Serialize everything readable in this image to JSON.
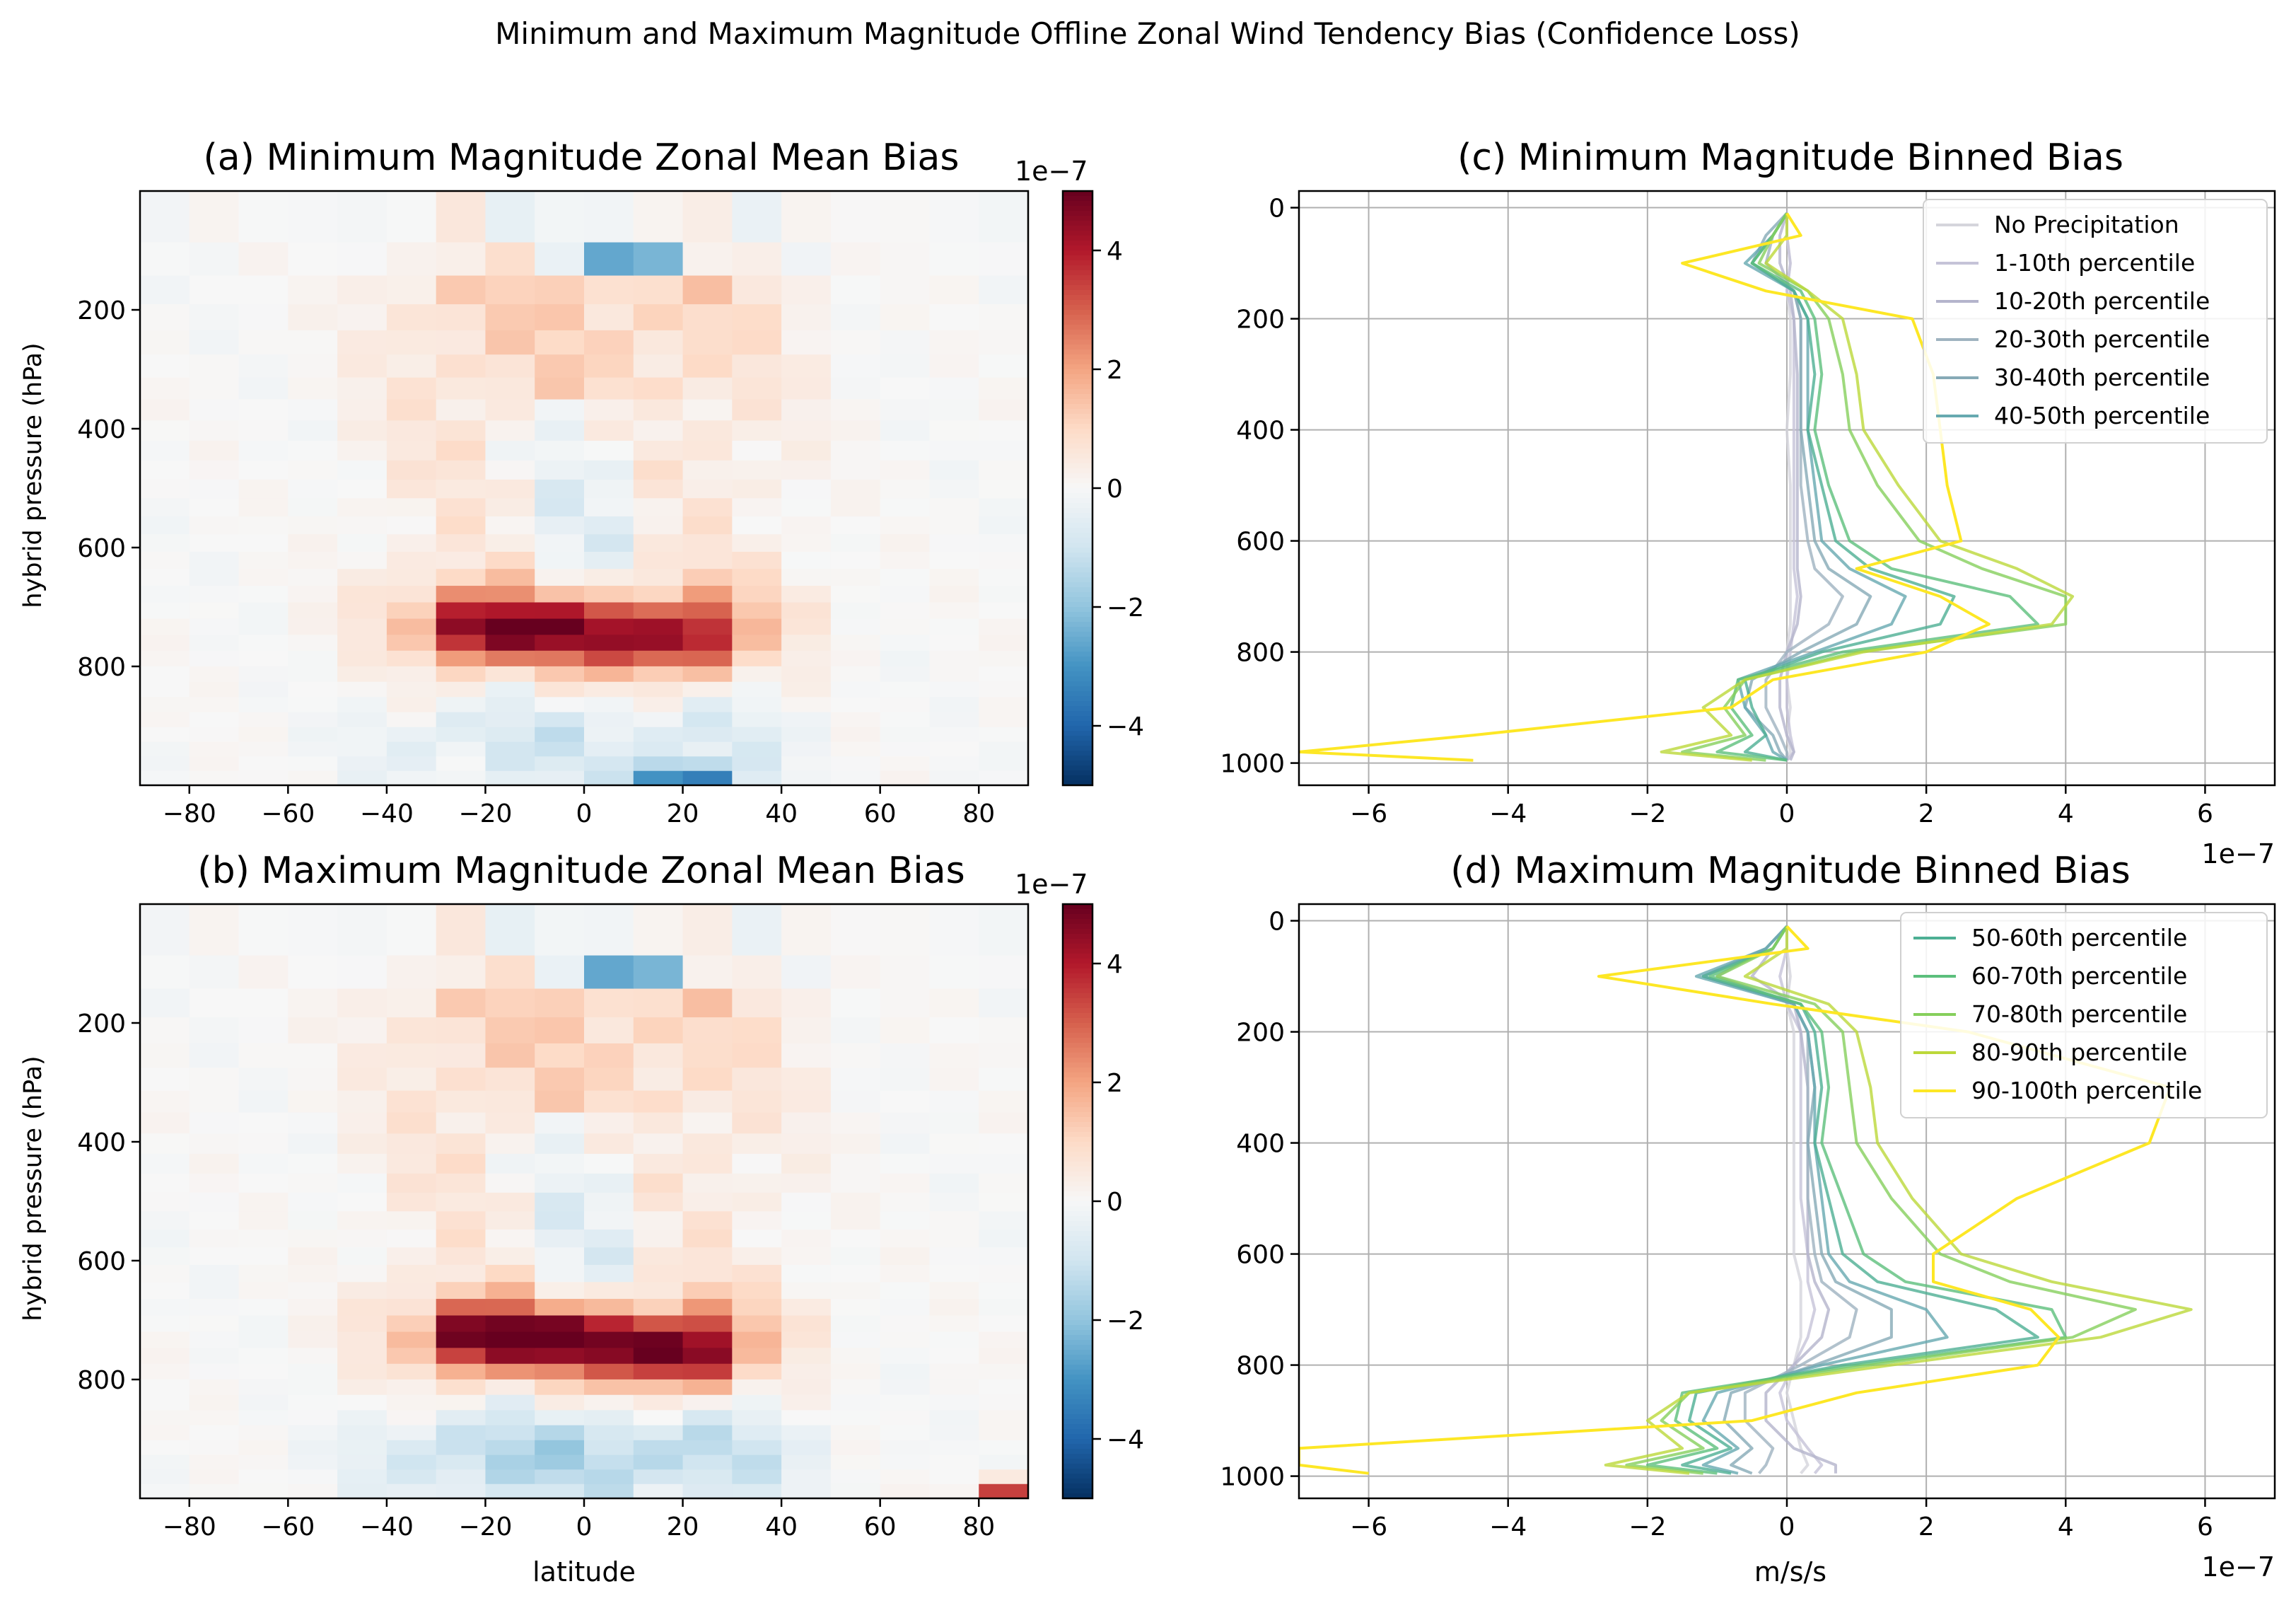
{
  "suptitle": "Minimum and Maximum Magnitude Offline Zonal Wind Tendency Bias (Confidence Loss)",
  "chart_data": [
    {
      "id": "a",
      "type": "heatmap",
      "title": "(a) Minimum Magnitude Zonal Mean Bias",
      "xlabel": "",
      "ylabel": "hybrid pressure (hPa)",
      "xlim": [
        -90,
        90
      ],
      "ylim": [
        1000,
        0
      ],
      "x_ticks": [
        -80,
        -60,
        -40,
        -20,
        0,
        20,
        40,
        60,
        80
      ],
      "x_tick_labels": [
        "−80",
        "−60",
        "−40",
        "−20",
        "0",
        "20",
        "40",
        "60",
        "80"
      ],
      "y_ticks": [
        200,
        400,
        600,
        800
      ],
      "y_tick_labels": [
        "200",
        "400",
        "600",
        "800"
      ],
      "latitude_band_width": 10,
      "colormap": "RdBu_r",
      "colorbar": {
        "range": [
          -5e-07,
          5e-07
        ],
        "ticks": [
          4,
          2,
          0,
          -2,
          -4
        ],
        "tick_labels": [
          "4",
          "2",
          "0",
          "−2",
          "−4"
        ],
        "exponent_label": "1e−7"
      },
      "features": [
        {
          "lat": 10,
          "p": 100,
          "value": -5e-07
        },
        {
          "lat": -20,
          "p": 740,
          "value": 4.5e-07
        },
        {
          "lat": 0,
          "p": 750,
          "value": 3.6e-07
        },
        {
          "lat": 20,
          "p": 760,
          "value": 3.9e-07
        },
        {
          "lat": 20,
          "p": 985,
          "value": -4.5e-07
        }
      ]
    },
    {
      "id": "b",
      "type": "heatmap",
      "title": "(b) Maximum Magnitude Zonal Mean Bias",
      "xlabel": "latitude",
      "ylabel": "hybrid pressure (hPa)",
      "xlim": [
        -90,
        90
      ],
      "ylim": [
        1000,
        0
      ],
      "x_ticks": [
        -80,
        -60,
        -40,
        -20,
        0,
        20,
        40,
        60,
        80
      ],
      "x_tick_labels": [
        "−80",
        "−60",
        "−40",
        "−20",
        "0",
        "20",
        "40",
        "60",
        "80"
      ],
      "y_ticks": [
        200,
        400,
        600,
        800
      ],
      "y_tick_labels": [
        "200",
        "400",
        "600",
        "800"
      ],
      "latitude_band_width": 10,
      "colormap": "RdBu_r",
      "colorbar": {
        "range": [
          -5e-07,
          5e-07
        ],
        "ticks": [
          4,
          2,
          0,
          -2,
          -4
        ],
        "tick_labels": [
          "4",
          "2",
          "0",
          "−2",
          "−4"
        ],
        "exponent_label": "1e−7"
      },
      "features": [
        {
          "lat": 10,
          "p": 100,
          "value": -5e-07
        },
        {
          "lat": -20,
          "p": 730,
          "value": 5e-07
        },
        {
          "lat": 0,
          "p": 740,
          "value": 4.2e-07
        },
        {
          "lat": 20,
          "p": 760,
          "value": 5e-07
        },
        {
          "lat": 90,
          "p": 990,
          "value": 5e-07
        }
      ]
    },
    {
      "id": "c",
      "type": "line",
      "title": "(c) Minimum Magnitude Binned Bias",
      "xlabel": "",
      "ylabel": "",
      "xlim": [
        -7e-07,
        7e-07
      ],
      "ylim": [
        1040,
        -30
      ],
      "x_ticks": [
        -6,
        -4,
        -2,
        0,
        2,
        4,
        6
      ],
      "x_tick_labels": [
        "−6",
        "−4",
        "−2",
        "0",
        "2",
        "4",
        "6"
      ],
      "x_exponent_label": "1e−7",
      "y_ticks": [
        0,
        200,
        400,
        600,
        800,
        1000
      ],
      "y_tick_labels": [
        "0",
        "200",
        "400",
        "600",
        "800",
        "1000"
      ],
      "grid": true,
      "legend": "top-right",
      "legend_entries": [
        "No Precipitation",
        "1-10th percentile",
        "10-20th percentile",
        "20-30th percentile",
        "30-40th percentile",
        "40-50th percentile"
      ],
      "y": [
        10,
        50,
        100,
        150,
        200,
        300,
        400,
        500,
        600,
        650,
        700,
        750,
        800,
        850,
        900,
        950,
        980,
        995
      ],
      "series": [
        {
          "name": "No Precipitation",
          "color": "#d5d5dc",
          "values": [
            0.0,
            0.0,
            0.05,
            0.0,
            0.05,
            0.05,
            0.0,
            0.05,
            0.05,
            0.05,
            0.05,
            0.05,
            0.0,
            0.0,
            0.05,
            0.0,
            0.05,
            0.0
          ]
        },
        {
          "name": "1-10th percentile",
          "color": "#c5c3d8",
          "values": [
            0.0,
            0.0,
            0.05,
            0.0,
            0.1,
            0.1,
            0.1,
            0.1,
            0.1,
            0.1,
            0.15,
            0.1,
            0.05,
            0.0,
            0.0,
            0.05,
            0.1,
            0.0
          ]
        },
        {
          "name": "10-20th percentile",
          "color": "#b4b4cc",
          "values": [
            0.0,
            -0.1,
            -0.1,
            0.05,
            0.1,
            0.15,
            0.15,
            0.15,
            0.15,
            0.15,
            0.2,
            0.15,
            0.0,
            -0.1,
            -0.1,
            0.0,
            0.1,
            0.05
          ]
        },
        {
          "name": "20-30th percentile",
          "color": "#9fb3c0",
          "values": [
            0.0,
            -0.2,
            -0.3,
            0.1,
            0.2,
            0.2,
            0.2,
            0.2,
            0.3,
            0.4,
            0.8,
            0.6,
            0.0,
            -0.3,
            -0.3,
            -0.1,
            0.0,
            0.0
          ]
        },
        {
          "name": "30-40th percentile",
          "color": "#86aab6",
          "values": [
            0.0,
            -0.3,
            -0.5,
            0.1,
            0.2,
            0.2,
            0.2,
            0.3,
            0.4,
            0.6,
            1.2,
            1.0,
            0.2,
            -0.5,
            -0.6,
            -0.2,
            -0.1,
            0.0
          ]
        },
        {
          "name": "40-50th percentile",
          "color": "#67a9b0",
          "values": [
            0.0,
            -0.2,
            -0.6,
            0.1,
            0.3,
            0.3,
            0.3,
            0.4,
            0.5,
            0.9,
            1.7,
            1.5,
            0.4,
            -0.7,
            -0.6,
            -0.3,
            -0.2,
            0.0
          ]
        },
        {
          "name": "50-60th percentile",
          "color": "#4daf94",
          "values": [
            0.0,
            -0.2,
            -0.5,
            0.1,
            0.3,
            0.4,
            0.3,
            0.5,
            0.7,
            1.2,
            2.4,
            2.2,
            0.5,
            -0.6,
            -0.5,
            -0.3,
            -0.6,
            0.0
          ]
        },
        {
          "name": "60-70th percentile",
          "color": "#5cbf7c",
          "values": [
            0.0,
            -0.2,
            -0.5,
            0.2,
            0.4,
            0.5,
            0.4,
            0.6,
            0.9,
            1.5,
            3.2,
            3.6,
            0.8,
            -0.7,
            -0.8,
            -0.5,
            -1.0,
            0.0
          ]
        },
        {
          "name": "70-80th percentile",
          "color": "#86cf5c",
          "values": [
            0.0,
            -0.2,
            -0.4,
            0.3,
            0.6,
            0.8,
            0.9,
            1.3,
            1.9,
            2.8,
            4.0,
            4.0,
            1.0,
            -0.6,
            -0.9,
            -0.6,
            -1.5,
            -0.3
          ]
        },
        {
          "name": "80-90th percentile",
          "color": "#bcd83a",
          "values": [
            0.0,
            0.0,
            -0.3,
            0.3,
            0.8,
            1.0,
            1.1,
            1.6,
            2.2,
            3.3,
            4.1,
            3.8,
            1.1,
            -0.6,
            -1.2,
            -0.8,
            -1.8,
            -0.5
          ]
        },
        {
          "name": "90-100th percentile",
          "color": "#fde725",
          "values": [
            0.0,
            0.2,
            -1.5,
            -0.3,
            1.8,
            2.1,
            2.2,
            2.3,
            2.5,
            1.0,
            2.2,
            2.9,
            2.0,
            -0.2,
            -0.8,
            -4.5,
            -7.0,
            -4.5
          ]
        }
      ]
    },
    {
      "id": "d",
      "type": "line",
      "title": "(d) Maximum Magnitude Binned Bias",
      "xlabel": "m/s/s",
      "ylabel": "",
      "xlim": [
        -7e-07,
        7e-07
      ],
      "ylim": [
        1040,
        -30
      ],
      "x_ticks": [
        -6,
        -4,
        -2,
        0,
        2,
        4,
        6
      ],
      "x_tick_labels": [
        "−6",
        "−4",
        "−2",
        "0",
        "2",
        "4",
        "6"
      ],
      "x_exponent_label": "1e−7",
      "y_ticks": [
        0,
        200,
        400,
        600,
        800,
        1000
      ],
      "y_tick_labels": [
        "0",
        "200",
        "400",
        "600",
        "800",
        "1000"
      ],
      "grid": true,
      "legend": "top-right",
      "legend_entries": [
        "50-60th percentile",
        "60-70th percentile",
        "70-80th percentile",
        "80-90th percentile",
        "90-100th percentile"
      ],
      "y": [
        10,
        50,
        100,
        150,
        200,
        300,
        400,
        500,
        600,
        650,
        700,
        750,
        800,
        850,
        900,
        950,
        980,
        995
      ],
      "series": [
        {
          "name": "No Precipitation",
          "color": "#d5d5dc",
          "values": [
            0.0,
            0.0,
            0.05,
            0.0,
            0.1,
            0.1,
            0.1,
            0.1,
            0.1,
            0.2,
            0.2,
            0.2,
            0.1,
            0.0,
            0.1,
            0.2,
            0.3,
            0.2
          ]
        },
        {
          "name": "1-10th percentile",
          "color": "#c5c3d8",
          "values": [
            0.0,
            0.0,
            -0.1,
            0.0,
            0.2,
            0.2,
            0.2,
            0.2,
            0.3,
            0.3,
            0.4,
            0.3,
            0.1,
            -0.1,
            0.0,
            0.3,
            0.5,
            0.4
          ]
        },
        {
          "name": "10-20th percentile",
          "color": "#b4b4cc",
          "values": [
            0.0,
            -0.2,
            -0.5,
            0.1,
            0.2,
            0.3,
            0.3,
            0.3,
            0.3,
            0.4,
            0.6,
            0.5,
            0.1,
            -0.3,
            -0.3,
            0.1,
            0.7,
            0.7
          ]
        },
        {
          "name": "20-30th percentile",
          "color": "#9fb3c0",
          "values": [
            0.0,
            -0.3,
            -1.0,
            0.1,
            0.3,
            0.3,
            0.3,
            0.3,
            0.4,
            0.5,
            1.0,
            0.9,
            0.2,
            -0.6,
            -0.6,
            -0.2,
            -0.3,
            -0.4
          ]
        },
        {
          "name": "30-40th percentile",
          "color": "#86aab6",
          "values": [
            0.0,
            -0.3,
            -1.2,
            0.1,
            0.3,
            0.4,
            0.3,
            0.4,
            0.5,
            0.7,
            1.5,
            1.5,
            0.4,
            -0.8,
            -0.9,
            -0.5,
            -0.8,
            -0.5
          ]
        },
        {
          "name": "40-50th percentile",
          "color": "#67a9b0",
          "values": [
            0.0,
            -0.3,
            -1.3,
            0.1,
            0.3,
            0.4,
            0.4,
            0.5,
            0.6,
            0.9,
            2.0,
            2.3,
            0.5,
            -1.0,
            -1.2,
            -0.7,
            -1.2,
            -0.7
          ]
        },
        {
          "name": "50-60th percentile",
          "color": "#4daf94",
          "values": [
            0.0,
            -0.2,
            -1.2,
            0.2,
            0.4,
            0.5,
            0.4,
            0.6,
            0.8,
            1.3,
            3.0,
            3.6,
            0.8,
            -1.3,
            -1.4,
            -0.8,
            -1.5,
            -0.8
          ]
        },
        {
          "name": "60-70th percentile",
          "color": "#5cbf7c",
          "values": [
            0.0,
            -0.2,
            -1.1,
            0.2,
            0.5,
            0.6,
            0.5,
            0.8,
            1.1,
            1.7,
            3.8,
            4.0,
            1.0,
            -1.5,
            -1.6,
            -1.0,
            -2.0,
            -1.0
          ]
        },
        {
          "name": "70-80th percentile",
          "color": "#86cf5c",
          "values": [
            0.0,
            -0.2,
            -1.0,
            0.4,
            0.8,
            0.9,
            1.0,
            1.5,
            2.2,
            3.2,
            5.0,
            4.1,
            1.2,
            -1.4,
            -1.8,
            -1.2,
            -2.3,
            -1.2
          ]
        },
        {
          "name": "80-90th percentile",
          "color": "#bcd83a",
          "values": [
            0.0,
            0.0,
            -0.6,
            0.6,
            1.0,
            1.2,
            1.3,
            1.8,
            2.5,
            3.8,
            5.8,
            4.5,
            1.5,
            -1.4,
            -2.0,
            -1.5,
            -2.6,
            -1.4
          ]
        },
        {
          "name": "90-100th percentile",
          "color": "#fde725",
          "values": [
            0.0,
            0.3,
            -2.7,
            -0.2,
            2.6,
            5.5,
            5.2,
            3.3,
            2.1,
            2.1,
            3.5,
            3.9,
            3.6,
            1.0,
            -0.5,
            -7.0,
            -7.0,
            -6.0
          ]
        }
      ]
    }
  ]
}
